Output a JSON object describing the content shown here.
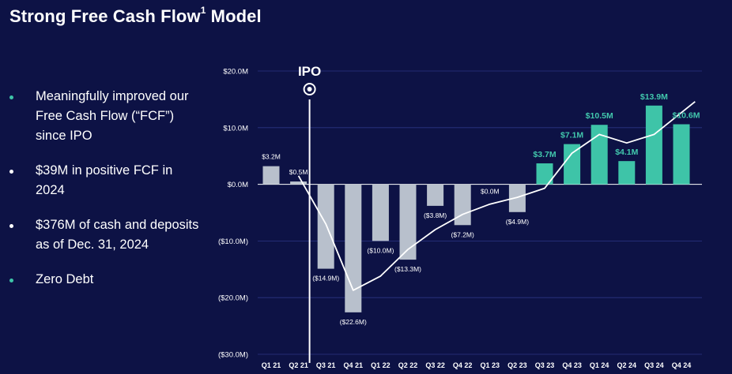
{
  "slide": {
    "title_main": "Strong Free Cash Flow",
    "title_sup": "1",
    "title_tail": " Model"
  },
  "bullets": [
    {
      "text": "Meaningfully improved our Free Cash Flow (“FCF”) since IPO",
      "dot_color": "#3ec4a8"
    },
    {
      "text": "$39M in positive FCF in 2024",
      "dot_color": "#ffffff"
    },
    {
      "text": "$376M of cash and deposits as of Dec. 31, 2024",
      "dot_color": "#ffffff"
    },
    {
      "text": "Zero Debt",
      "dot_color": "#3ec4a8"
    }
  ],
  "chart_data": {
    "type": "bar",
    "categories": [
      "Q1 21",
      "Q2 21",
      "Q3 21",
      "Q4 21",
      "Q1 22",
      "Q2 22",
      "Q3 22",
      "Q4 22",
      "Q1 23",
      "Q2 23",
      "Q3 23",
      "Q4 23",
      "Q1 24",
      "Q2 24",
      "Q3 24",
      "Q4 24"
    ],
    "values": [
      3.2,
      0.5,
      -14.9,
      -22.6,
      -10.0,
      -13.3,
      -3.8,
      -7.2,
      0.0,
      -4.9,
      3.7,
      7.1,
      10.5,
      4.1,
      13.9,
      10.6
    ],
    "data_labels": [
      "$3.2M",
      "$0.5M",
      "($14.9M)",
      "($22.6M)",
      "($10.0M)",
      "($13.3M)",
      "($3.8M)",
      "($7.2M)",
      "$0.0M",
      "($4.9M)",
      "$3.7M",
      "$7.1M",
      "$10.5M",
      "$4.1M",
      "$13.9M",
      "$10.6M"
    ],
    "ylim": [
      -30,
      20
    ],
    "yticks": [
      20,
      10,
      0,
      -10,
      -20,
      -30
    ],
    "ytick_labels": [
      "$20.0M",
      "$10.0M",
      "$0.0M",
      "($10.0M)",
      "($20.0M)",
      "($30.0M)"
    ],
    "grid": true,
    "trend_line": {
      "x": [
        1.0,
        2.0,
        3.0,
        4.0,
        5.0,
        6.0,
        7.0,
        8.0,
        9.0,
        10.0,
        11.0,
        12.0,
        13.0,
        14.0,
        15.0,
        16.5
      ],
      "y": [
        null,
        1.5,
        -7,
        -18.7,
        -16.2,
        -11.5,
        -8.0,
        -5.3,
        -3.5,
        -2.3,
        -0.7,
        5.5,
        8.8,
        7.3,
        8.8,
        14.6
      ]
    },
    "annotation": {
      "label": "IPO",
      "category_index": 1
    },
    "colors": {
      "negative_or_early": "#b8c0cc",
      "positive_recent": "#3ec4a8",
      "label_teal": "#42c8ad",
      "label_light": "#ffffff",
      "grid": "#2c3585",
      "line": "#ffffff"
    },
    "teal_from_index": 10
  }
}
